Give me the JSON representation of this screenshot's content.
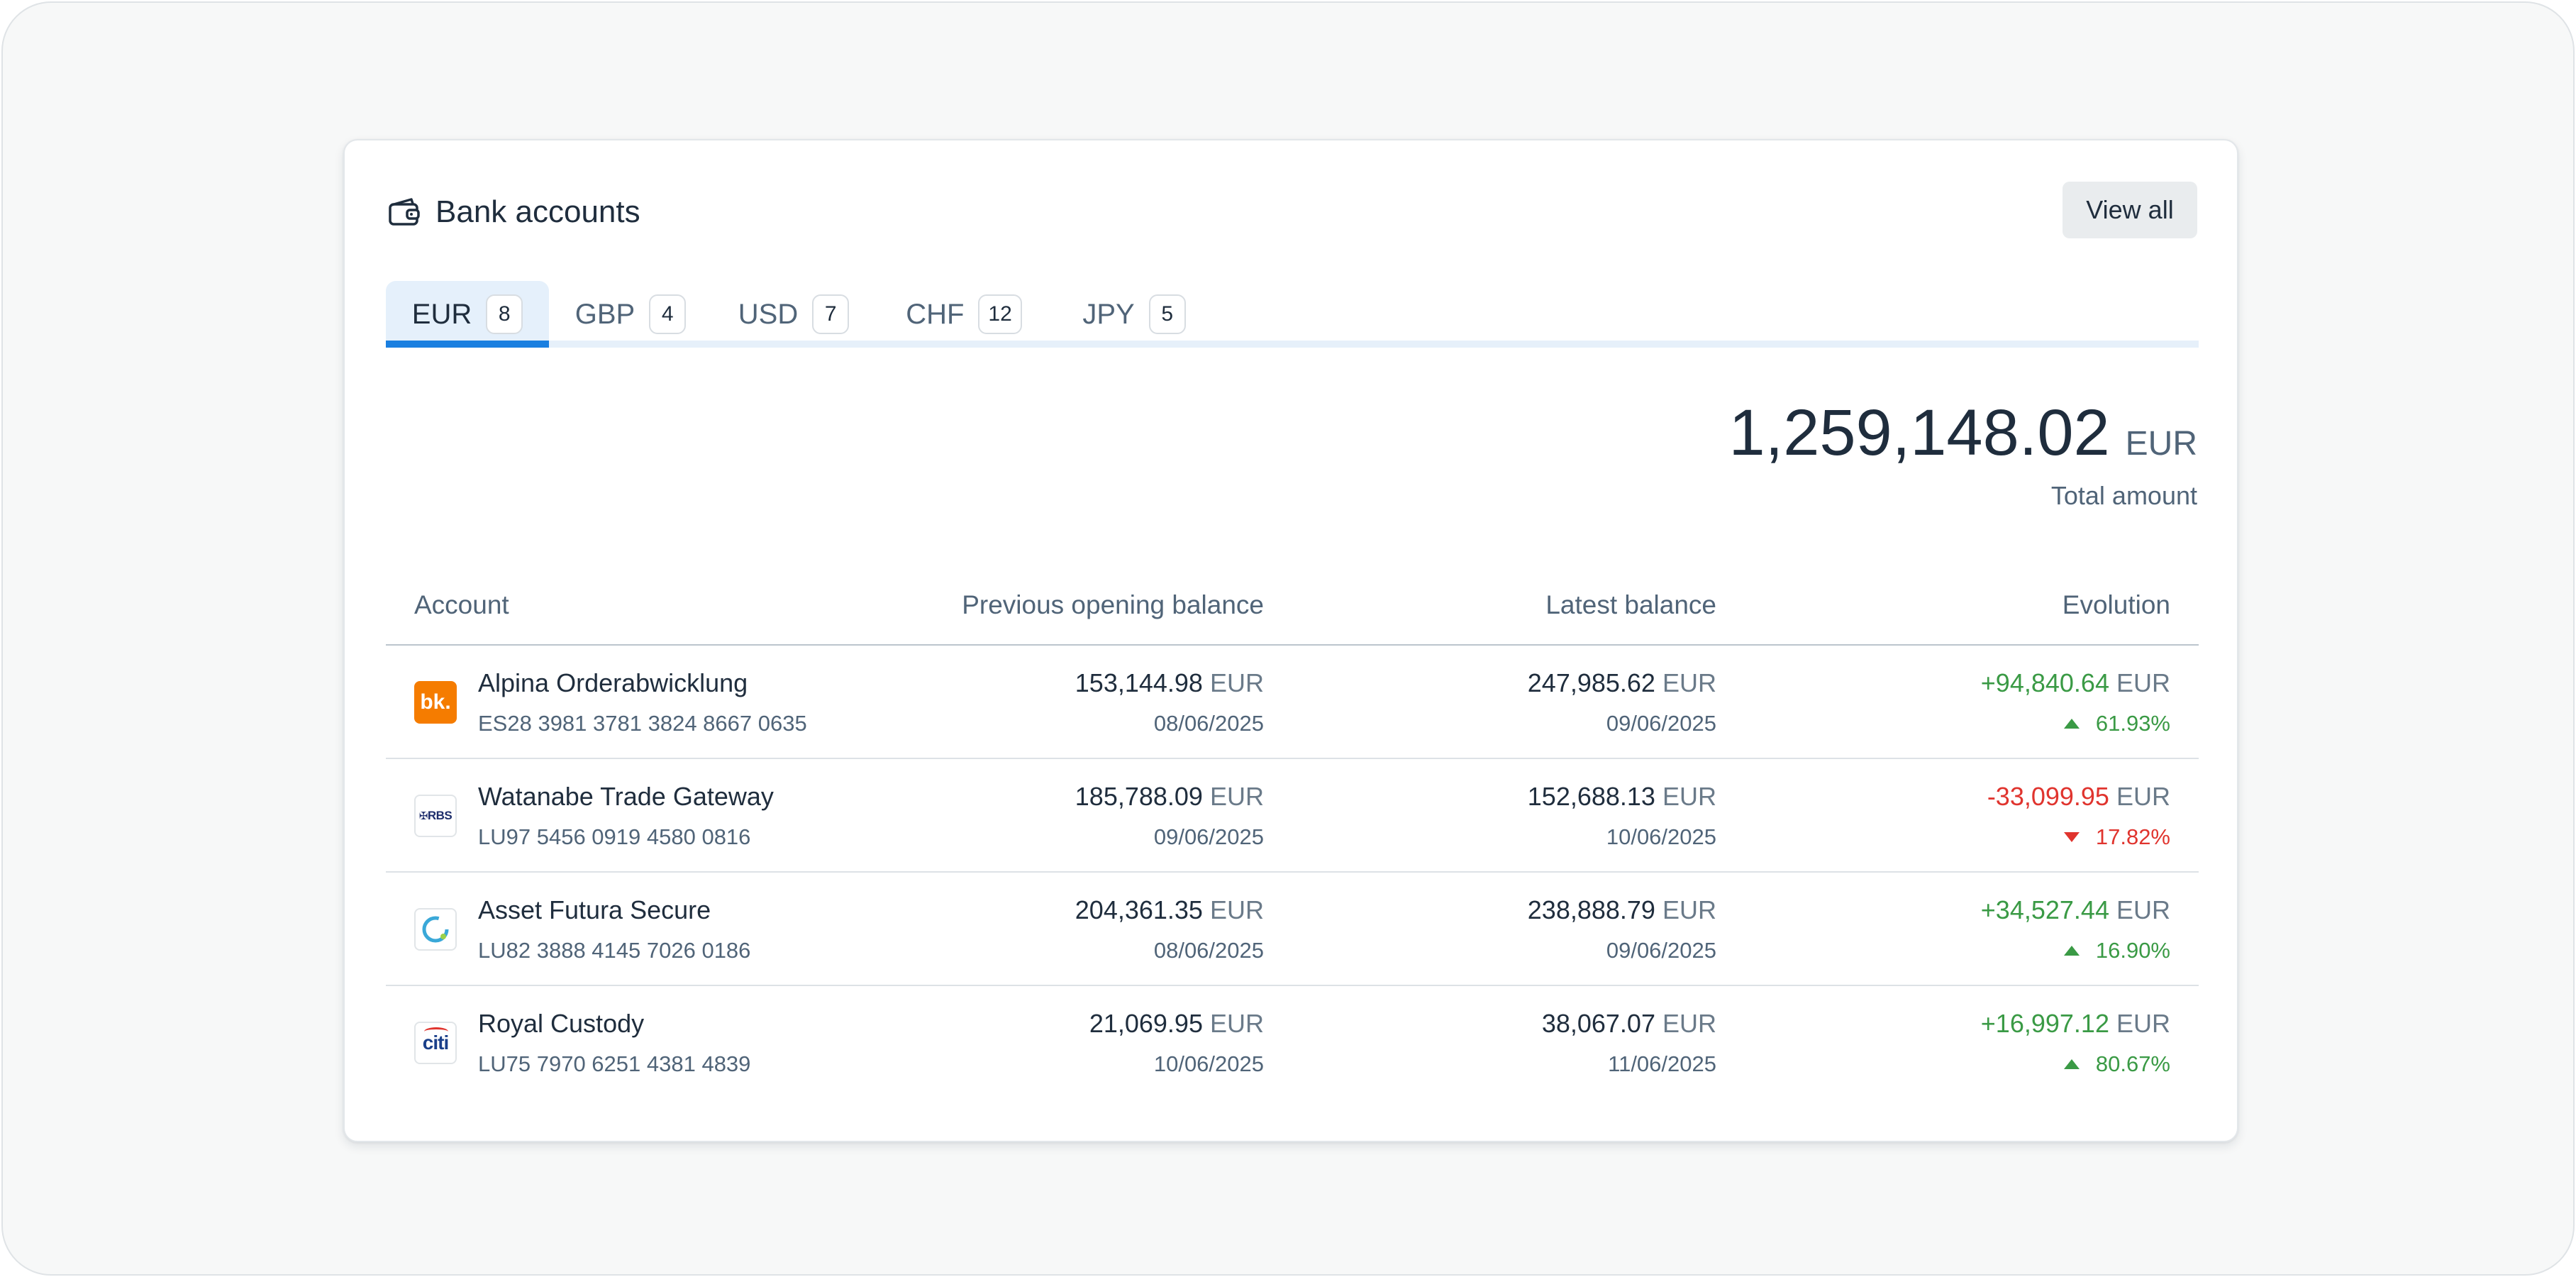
{
  "header": {
    "title": "Bank accounts",
    "icon": "wallet-icon",
    "view_all_label": "View all"
  },
  "tabs": [
    {
      "label": "EUR",
      "count": "8",
      "active": true
    },
    {
      "label": "GBP",
      "count": "4",
      "active": false
    },
    {
      "label": "USD",
      "count": "7",
      "active": false
    },
    {
      "label": "CHF",
      "count": "12",
      "active": false
    },
    {
      "label": "JPY",
      "count": "5",
      "active": false
    }
  ],
  "total": {
    "amount": "1,259,148.02",
    "currency": "EUR",
    "label": "Total amount"
  },
  "table": {
    "columns": {
      "account": "Account",
      "previous": "Previous opening balance",
      "latest": "Latest balance",
      "evolution": "Evolution"
    },
    "rows": [
      {
        "name": "Alpina Orderabwicklung",
        "iban": "ES28 3981 3781 3824 8667 0635",
        "logo": "bk-bank-logo",
        "prev_amount": "153,144.98",
        "prev_currency": "EUR",
        "prev_date": "08/06/2025",
        "latest_amount": "247,985.62",
        "latest_currency": "EUR",
        "latest_date": "09/06/2025",
        "evo_amount": "+94,840.64",
        "evo_currency": "EUR",
        "evo_pct": "61.93%",
        "direction": "up"
      },
      {
        "name": "Watanabe Trade Gateway",
        "iban": "LU97 5456 0919 4580 0816",
        "logo": "rbs-bank-logo",
        "prev_amount": "185,788.09",
        "prev_currency": "EUR",
        "prev_date": "09/06/2025",
        "latest_amount": "152,688.13",
        "latest_currency": "EUR",
        "latest_date": "10/06/2025",
        "evo_amount": "-33,099.95",
        "evo_currency": "EUR",
        "evo_pct": "17.82%",
        "direction": "down"
      },
      {
        "name": "Asset Futura Secure",
        "iban": "LU82 3888 4145 7026 0186",
        "logo": "ring-bank-logo",
        "prev_amount": "204,361.35",
        "prev_currency": "EUR",
        "prev_date": "08/06/2025",
        "latest_amount": "238,888.79",
        "latest_currency": "EUR",
        "latest_date": "09/06/2025",
        "evo_amount": "+34,527.44",
        "evo_currency": "EUR",
        "evo_pct": "16.90%",
        "direction": "up"
      },
      {
        "name": "Royal Custody",
        "iban": "LU75 7970 6251 4381 4839",
        "logo": "citi-bank-logo",
        "prev_amount": "21,069.95",
        "prev_currency": "EUR",
        "prev_date": "10/06/2025",
        "latest_amount": "38,067.07",
        "latest_currency": "EUR",
        "latest_date": "11/06/2025",
        "evo_amount": "+16,997.12",
        "evo_currency": "EUR",
        "evo_pct": "80.67%",
        "direction": "up"
      }
    ]
  },
  "logo_text": {
    "bk": "bk.",
    "rbs": "RBS",
    "citi": "citi"
  },
  "colors": {
    "accent": "#1a7fe0",
    "positive": "#3a9a45",
    "negative": "#e0342e",
    "bk_orange": "#f57c00"
  }
}
